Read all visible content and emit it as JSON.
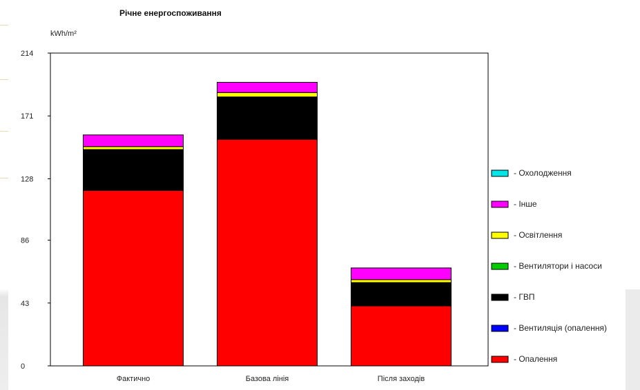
{
  "chart_data": {
    "type": "bar",
    "stacked": true,
    "title": "Річне енергоспоживання",
    "ylabel": "kWh/m²",
    "ylim": [
      0,
      214
    ],
    "yticks": [
      "214",
      "171",
      "128",
      "86",
      "43",
      "0"
    ],
    "categories": [
      "Фактично",
      "Базова лінія",
      "Після заходів"
    ],
    "grid": false,
    "legend_position": "right",
    "series": [
      {
        "name": "- Опалення",
        "color": "#ff0000",
        "values": [
          120,
          155,
          41
        ]
      },
      {
        "name": "- Вентиляція (опалення)",
        "color": "#0000ff",
        "values": [
          0,
          0,
          0
        ]
      },
      {
        "name": "- ГВП",
        "color": "#000000",
        "values": [
          28,
          29,
          16
        ]
      },
      {
        "name": "- Вентилятори  і насоси",
        "color": "#00cc00",
        "values": [
          0,
          0,
          0
        ]
      },
      {
        "name": "- Освітлення",
        "color": "#ffff00",
        "values": [
          2,
          3,
          2
        ]
      },
      {
        "name": "- Інше",
        "color": "#ff00ff",
        "values": [
          8,
          7,
          8
        ]
      },
      {
        "name": "- Охолодження",
        "color": "#00e5e5",
        "values": [
          0,
          0,
          0
        ]
      }
    ]
  }
}
